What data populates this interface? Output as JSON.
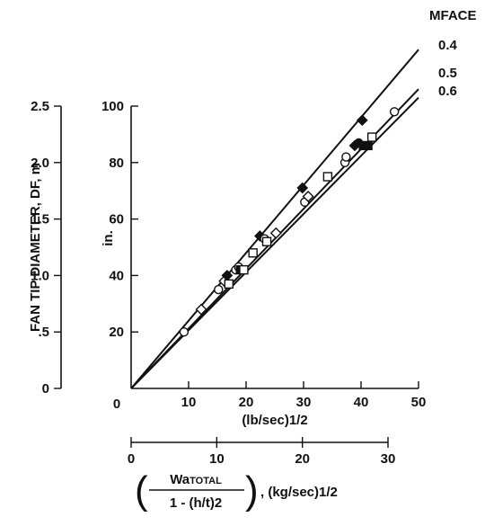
{
  "chart_data": {
    "type": "line",
    "y_title_m": "FAN TIP DIAMETER, DF, m",
    "y_unit_in": "in.",
    "x_title_lb": "(lb/sec)1/2",
    "x_title_kg_prefix": "Wa",
    "x_title_kg_total": "TOTAL",
    "x_title_kg_denominator": "1 - (h/t)2",
    "x_title_kg_suffix": ", (kg/sec)1/2",
    "legend_title": "MFACE",
    "x_lb_ticks": [
      "0",
      "10",
      "20",
      "30",
      "40",
      "50"
    ],
    "x_kg_ticks": [
      "0",
      "10",
      "20",
      "30"
    ],
    "y_in_ticks": [
      "20",
      "40",
      "60",
      "80",
      "100"
    ],
    "y_m_ticks": [
      "0",
      ".5",
      "1.0",
      "1.5",
      "2.0",
      "2.5"
    ],
    "x_lb_range": [
      0,
      50
    ],
    "x_kg_range": [
      0,
      30
    ],
    "y_in_range": [
      0,
      100
    ],
    "y_m_range": [
      0,
      2.5
    ],
    "grid": false,
    "series": [
      {
        "name": "0.4",
        "line_endpoint": [
          50,
          120
        ]
      },
      {
        "name": "0.5",
        "line_endpoint": [
          50,
          106
        ]
      },
      {
        "name": "0.6",
        "line_endpoint": [
          50,
          103
        ]
      }
    ],
    "points": [
      {
        "x": 9.2,
        "y": 20,
        "marker": "circle-open"
      },
      {
        "x": 12.2,
        "y": 28,
        "marker": "diamond-open"
      },
      {
        "x": 15.2,
        "y": 35,
        "marker": "circle-open"
      },
      {
        "x": 16.2,
        "y": 38,
        "marker": "diamond-open"
      },
      {
        "x": 16.7,
        "y": 40,
        "marker": "diamond-filled"
      },
      {
        "x": 17.0,
        "y": 37,
        "marker": "square-open"
      },
      {
        "x": 18.2,
        "y": 42,
        "marker": "circle-open"
      },
      {
        "x": 18.7,
        "y": 43,
        "marker": "circle-open"
      },
      {
        "x": 19.0,
        "y": 42,
        "marker": "square-filled"
      },
      {
        "x": 19.6,
        "y": 42,
        "marker": "square-open"
      },
      {
        "x": 21.2,
        "y": 48,
        "marker": "square-open"
      },
      {
        "x": 22.4,
        "y": 54,
        "marker": "diamond-filled"
      },
      {
        "x": 23.2,
        "y": 53,
        "marker": "circle-open"
      },
      {
        "x": 23.6,
        "y": 52,
        "marker": "square-open"
      },
      {
        "x": 25.2,
        "y": 55,
        "marker": "diamond-open"
      },
      {
        "x": 29.8,
        "y": 71,
        "marker": "diamond-filled"
      },
      {
        "x": 30.2,
        "y": 66,
        "marker": "circle-open"
      },
      {
        "x": 30.8,
        "y": 68,
        "marker": "diamond-open"
      },
      {
        "x": 34.2,
        "y": 75,
        "marker": "square-open"
      },
      {
        "x": 37.2,
        "y": 80,
        "marker": "circle-open"
      },
      {
        "x": 37.4,
        "y": 82,
        "marker": "circle-open"
      },
      {
        "x": 38.9,
        "y": 86,
        "marker": "diamond-filled"
      },
      {
        "x": 39.6,
        "y": 87,
        "marker": "circle-filled"
      },
      {
        "x": 40.2,
        "y": 95,
        "marker": "diamond-filled"
      },
      {
        "x": 40.4,
        "y": 86,
        "marker": "square-filled"
      },
      {
        "x": 41.2,
        "y": 86,
        "marker": "square-filled"
      },
      {
        "x": 41.9,
        "y": 89,
        "marker": "square-open"
      },
      {
        "x": 45.8,
        "y": 98,
        "marker": "circle-open"
      }
    ]
  }
}
